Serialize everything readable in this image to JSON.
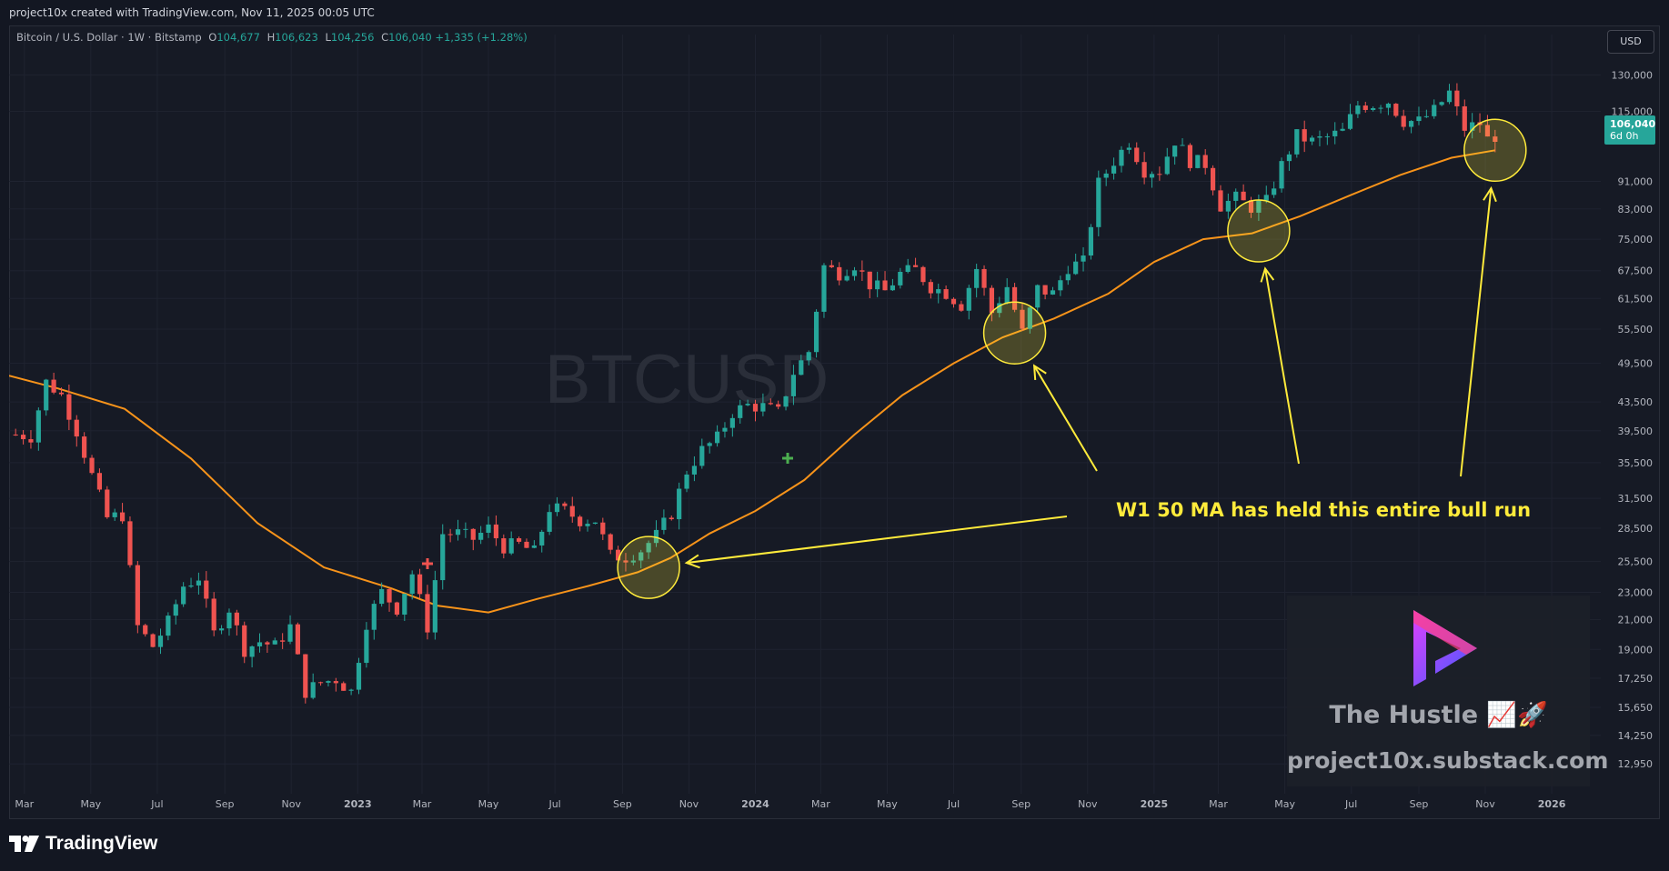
{
  "header": {
    "credit": "project10x created with TradingView.com, Nov 11, 2025 00:05 UTC"
  },
  "legend": {
    "symbol": "Bitcoin / U.S. Dollar · 1W · Bitstamp",
    "open_label": "O",
    "open": "104,677",
    "high_label": "H",
    "high": "106,623",
    "low_label": "L",
    "low": "104,256",
    "close_label": "C",
    "close": "106,040",
    "change": "+1,335 (+1.28%)"
  },
  "currency_button": "USD",
  "last_price": {
    "value": "106,040",
    "countdown": "6d 0h"
  },
  "watermark_symbol": "BTCUSD",
  "annotation": "W1 50 MA has held this entire bull run",
  "brand": {
    "title": "The Hustle 📈🚀",
    "url": "project10x.substack.com"
  },
  "footer": {
    "logo_text": "TradingView"
  },
  "colors": {
    "up": "#26a69a",
    "down": "#ef5350",
    "ma": "#f7931a",
    "annotation": "#ffeb3b",
    "background": "#161a25",
    "grid": "#1f2330"
  },
  "chart_data": {
    "type": "candlestick",
    "timeframe": "1W",
    "x_tick_labels": [
      "Mar",
      "May",
      "Jul",
      "Sep",
      "Nov",
      "2023",
      "Mar",
      "May",
      "Jul",
      "Sep",
      "Nov",
      "2024",
      "Mar",
      "May",
      "Jul",
      "Sep",
      "Nov",
      "2025",
      "Mar",
      "May",
      "Jul",
      "Sep",
      "Nov",
      "2026"
    ],
    "y_tick_labels": [
      "130,000",
      "115,000",
      "106,040",
      "91,000",
      "83,000",
      "75,000",
      "67,500",
      "61,500",
      "55,500",
      "49,500",
      "43,500",
      "39,500",
      "35,500",
      "31,500",
      "28,500",
      "25,500",
      "23,000",
      "21,000",
      "19,000",
      "17,250",
      "15,650",
      "14,250",
      "12,950"
    ],
    "y_ticks": [
      130000,
      115000,
      91000,
      83000,
      75000,
      67500,
      61500,
      55500,
      49500,
      43500,
      39500,
      35500,
      31500,
      28500,
      25500,
      23000,
      21000,
      19000,
      17250,
      15650,
      14250,
      12950
    ],
    "y_scale": "log",
    "ylim": [
      11900,
      140000
    ],
    "xlim": [
      "2022-02-15",
      "2026-02-15"
    ],
    "close_prices": [
      [
        "2022-02-21",
        39000
      ],
      [
        "2022-03-07",
        38800
      ],
      [
        "2022-03-21",
        46500
      ],
      [
        "2022-04-04",
        44500
      ],
      [
        "2022-04-18",
        39500
      ],
      [
        "2022-05-02",
        34000
      ],
      [
        "2022-05-16",
        29500
      ],
      [
        "2022-05-30",
        29800
      ],
      [
        "2022-06-13",
        20500
      ],
      [
        "2022-06-27",
        19200
      ],
      [
        "2022-07-11",
        20800
      ],
      [
        "2022-07-25",
        23500
      ],
      [
        "2022-08-08",
        24200
      ],
      [
        "2022-08-22",
        20000
      ],
      [
        "2022-09-05",
        21800
      ],
      [
        "2022-09-19",
        19000
      ],
      [
        "2022-10-03",
        19500
      ],
      [
        "2022-10-17",
        19200
      ],
      [
        "2022-10-31",
        20500
      ],
      [
        "2022-11-14",
        16500
      ],
      [
        "2022-11-28",
        17000
      ],
      [
        "2022-12-12",
        17200
      ],
      [
        "2022-12-26",
        16500
      ],
      [
        "2023-01-09",
        20800
      ],
      [
        "2023-01-23",
        23000
      ],
      [
        "2023-02-06",
        21800
      ],
      [
        "2023-02-20",
        24500
      ],
      [
        "2023-03-06",
        20500
      ],
      [
        "2023-03-20",
        28000
      ],
      [
        "2023-04-03",
        28000
      ],
      [
        "2023-04-17",
        27500
      ],
      [
        "2023-05-01",
        28500
      ],
      [
        "2023-05-15",
        26800
      ],
      [
        "2023-05-29",
        27000
      ],
      [
        "2023-06-12",
        26300
      ],
      [
        "2023-06-26",
        30500
      ],
      [
        "2023-07-10",
        30200
      ],
      [
        "2023-07-24",
        29300
      ],
      [
        "2023-08-07",
        29300
      ],
      [
        "2023-08-21",
        26000
      ],
      [
        "2023-09-04",
        25900
      ],
      [
        "2023-09-18",
        26500
      ],
      [
        "2023-10-02",
        27800
      ],
      [
        "2023-10-16",
        30000
      ],
      [
        "2023-10-30",
        34500
      ],
      [
        "2023-11-13",
        37000
      ],
      [
        "2023-11-27",
        38500
      ],
      [
        "2023-12-11",
        42000
      ],
      [
        "2023-12-25",
        43000
      ],
      [
        "2024-01-08",
        42800
      ],
      [
        "2024-01-22",
        42000
      ],
      [
        "2024-02-05",
        48000
      ],
      [
        "2024-02-19",
        51500
      ],
      [
        "2024-03-04",
        68500
      ],
      [
        "2024-03-18",
        67000
      ],
      [
        "2024-04-01",
        69000
      ],
      [
        "2024-04-15",
        64500
      ],
      [
        "2024-04-29",
        63000
      ],
      [
        "2024-05-13",
        66800
      ],
      [
        "2024-05-27",
        67700
      ],
      [
        "2024-06-10",
        64000
      ],
      [
        "2024-06-24",
        62700
      ],
      [
        "2024-07-08",
        60200
      ],
      [
        "2024-07-22",
        68000
      ],
      [
        "2024-08-05",
        58700
      ],
      [
        "2024-08-19",
        64000
      ],
      [
        "2024-09-02",
        54800
      ],
      [
        "2024-09-16",
        63500
      ],
      [
        "2024-09-30",
        62500
      ],
      [
        "2024-10-14",
        68400
      ],
      [
        "2024-10-28",
        69400
      ],
      [
        "2024-11-11",
        90300
      ],
      [
        "2024-11-25",
        97500
      ],
      [
        "2024-12-09",
        104000
      ],
      [
        "2024-12-23",
        94500
      ],
      [
        "2025-01-06",
        94500
      ],
      [
        "2025-01-20",
        104500
      ],
      [
        "2025-02-03",
        97500
      ],
      [
        "2025-02-17",
        96500
      ],
      [
        "2025-03-03",
        84000
      ],
      [
        "2025-03-17",
        86000
      ],
      [
        "2025-03-31",
        83500
      ],
      [
        "2025-04-14",
        85000
      ],
      [
        "2025-04-28",
        96000
      ],
      [
        "2025-05-12",
        106000
      ],
      [
        "2025-05-26",
        104000
      ],
      [
        "2025-06-09",
        105500
      ],
      [
        "2025-06-23",
        107500
      ],
      [
        "2025-07-07",
        117500
      ],
      [
        "2025-07-21",
        117800
      ],
      [
        "2025-08-04",
        119000
      ],
      [
        "2025-08-18",
        111500
      ],
      [
        "2025-09-01",
        111200
      ],
      [
        "2025-09-15",
        115200
      ],
      [
        "2025-09-29",
        122500
      ],
      [
        "2025-10-13",
        108600
      ],
      [
        "2025-10-27",
        110500
      ],
      [
        "2025-11-03",
        104700
      ],
      [
        "2025-11-10",
        106040
      ]
    ],
    "ma_50_week": [
      [
        "2022-02-15",
        47500
      ],
      [
        "2022-04-01",
        45500
      ],
      [
        "2022-06-01",
        42500
      ],
      [
        "2022-08-01",
        36000
      ],
      [
        "2022-10-01",
        29000
      ],
      [
        "2022-12-01",
        25000
      ],
      [
        "2023-02-01",
        23300
      ],
      [
        "2023-03-15",
        22000
      ],
      [
        "2023-05-01",
        21500
      ],
      [
        "2023-06-15",
        22500
      ],
      [
        "2023-08-01",
        23500
      ],
      [
        "2023-09-15",
        24600
      ],
      [
        "2023-10-15",
        25800
      ],
      [
        "2023-11-20",
        28000
      ],
      [
        "2024-01-01",
        30200
      ],
      [
        "2024-02-15",
        33500
      ],
      [
        "2024-04-01",
        39000
      ],
      [
        "2024-05-15",
        44500
      ],
      [
        "2024-07-01",
        49500
      ],
      [
        "2024-08-15",
        54000
      ],
      [
        "2024-10-01",
        57500
      ],
      [
        "2024-11-20",
        62500
      ],
      [
        "2025-01-01",
        69500
      ],
      [
        "2025-02-15",
        75000
      ],
      [
        "2025-04-01",
        76500
      ],
      [
        "2025-05-15",
        81000
      ],
      [
        "2025-07-01",
        87000
      ],
      [
        "2025-08-15",
        93000
      ],
      [
        "2025-10-01",
        98500
      ],
      [
        "2025-11-10",
        101000
      ]
    ],
    "ma_label": "W1 50 MA",
    "highlighted_touches": [
      "2023-09-25",
      "2024-08-26",
      "2025-04-07",
      "2025-11-10"
    ],
    "legend_placement": "top-left",
    "grid": true
  }
}
